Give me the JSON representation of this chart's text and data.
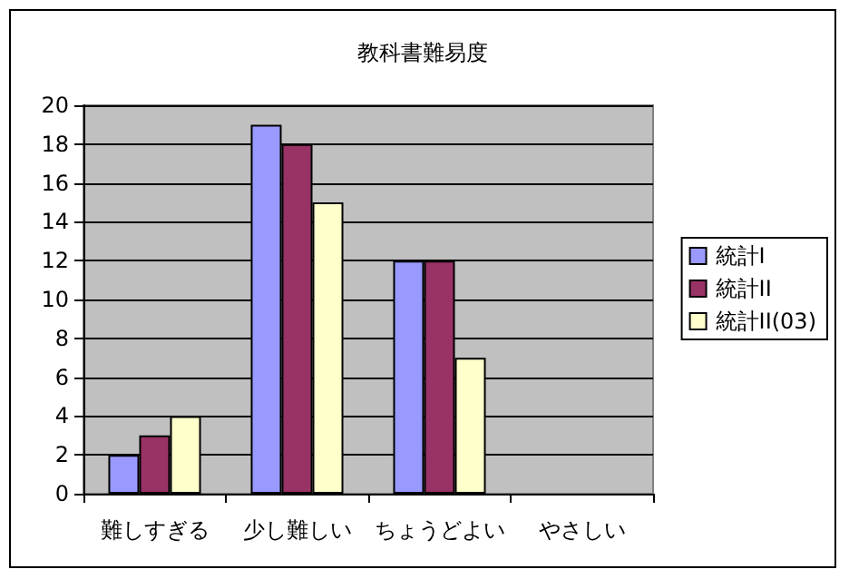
{
  "chart_data": {
    "type": "bar",
    "title": "教科書難易度",
    "categories": [
      "難しすぎる",
      "少し難しい",
      "ちょうどよい",
      "やさしい"
    ],
    "series": [
      {
        "name": "統計I",
        "color": "#9999ff",
        "values": [
          2,
          19,
          12,
          null
        ]
      },
      {
        "name": "統計II",
        "color": "#993366",
        "values": [
          3,
          18,
          12,
          null
        ]
      },
      {
        "name": "統計II(03)",
        "color": "#ffffcc",
        "values": [
          4,
          15,
          7,
          null
        ]
      }
    ],
    "ylim": [
      0,
      20
    ],
    "yticks": [
      0,
      2,
      4,
      6,
      8,
      10,
      12,
      14,
      16,
      18,
      20
    ],
    "grid": "y",
    "legend": "right"
  }
}
